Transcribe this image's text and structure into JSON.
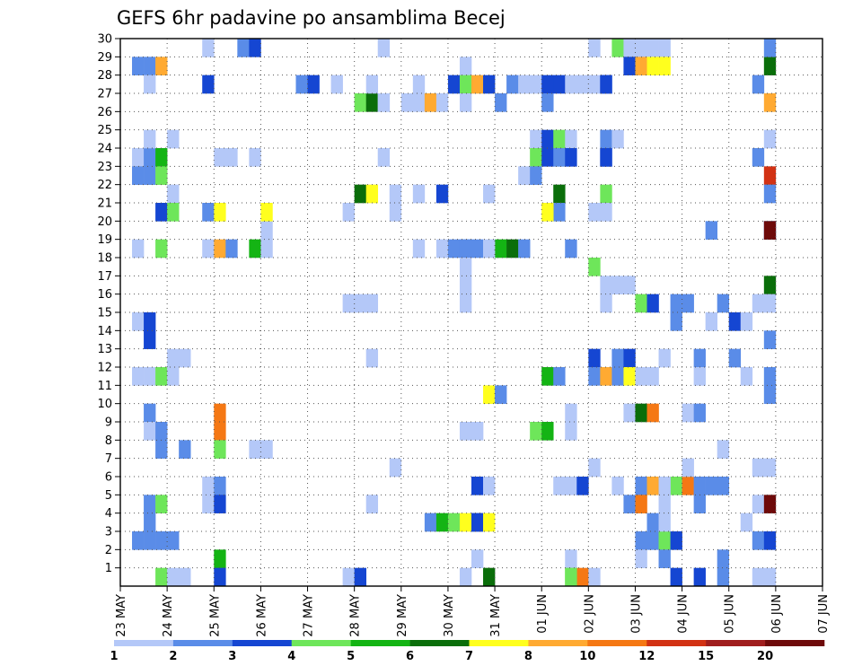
{
  "chart_data": {
    "type": "heatmap",
    "title": "GEFS 6hr padavine po ansamblima Becej",
    "x_ticks": [
      "23 MAY",
      "24 MAY",
      "25 MAY",
      "26 MAY",
      "27 MAY",
      "28 MAY",
      "29 MAY",
      "30 MAY",
      "31 MAY",
      "01 JUN",
      "02 JUN",
      "03 JUN",
      "04 JUN",
      "05 JUN",
      "06 JUN",
      "07 JUN"
    ],
    "y_ticks": [
      1,
      2,
      3,
      4,
      5,
      6,
      7,
      8,
      9,
      10,
      11,
      12,
      13,
      14,
      15,
      16,
      17,
      18,
      19,
      20,
      21,
      22,
      23,
      24,
      25,
      26,
      27,
      28,
      29,
      30
    ],
    "ylim": [
      0,
      30
    ],
    "steps_per_day": 4,
    "grid": true,
    "colorbar": {
      "labels": [
        "1",
        "2",
        "3",
        "4",
        "5",
        "6",
        "7",
        "8",
        "10",
        "12",
        "15",
        "20"
      ],
      "colors": [
        "#b4c8f8",
        "#5a8ce8",
        "#1546d2",
        "#6ee65a",
        "#14b414",
        "#0a6e0a",
        "#ffff1e",
        "#ffaa32",
        "#f57814",
        "#d23214",
        "#a01e1e",
        "#6e0a0a"
      ]
    },
    "cells": [
      [
        1,
        28,
        2
      ],
      [
        2,
        28,
        2
      ],
      [
        3,
        28,
        8
      ],
      [
        2,
        27,
        1
      ],
      [
        1,
        23,
        1
      ],
      [
        2,
        23,
        2
      ],
      [
        3,
        23,
        5
      ],
      [
        1,
        22,
        2
      ],
      [
        2,
        22,
        2
      ],
      [
        3,
        22,
        4
      ],
      [
        2,
        24,
        1
      ],
      [
        4,
        24,
        1
      ],
      [
        4,
        21,
        1
      ],
      [
        3,
        20,
        3
      ],
      [
        4,
        20,
        4
      ],
      [
        1,
        18,
        1
      ],
      [
        3,
        18,
        4
      ],
      [
        1,
        14,
        1
      ],
      [
        2,
        14,
        3
      ],
      [
        2,
        13,
        3
      ],
      [
        4,
        12,
        1
      ],
      [
        5,
        12,
        1
      ],
      [
        1,
        11,
        1
      ],
      [
        2,
        11,
        1
      ],
      [
        3,
        11,
        4
      ],
      [
        4,
        11,
        1
      ],
      [
        2,
        9,
        2
      ],
      [
        2,
        8,
        1
      ],
      [
        3,
        8,
        2
      ],
      [
        3,
        7,
        2
      ],
      [
        5,
        7,
        2
      ],
      [
        2,
        4,
        2
      ],
      [
        3,
        4,
        4
      ],
      [
        2,
        3,
        2
      ],
      [
        1,
        2,
        2
      ],
      [
        2,
        2,
        2
      ],
      [
        3,
        2,
        2
      ],
      [
        4,
        2,
        2
      ],
      [
        3,
        0,
        4
      ],
      [
        4,
        0,
        1
      ],
      [
        5,
        0,
        1
      ],
      [
        7,
        29,
        1
      ],
      [
        7,
        27,
        3
      ],
      [
        8,
        23,
        1
      ],
      [
        9,
        23,
        1
      ],
      [
        7,
        20,
        2
      ],
      [
        8,
        20,
        7
      ],
      [
        7,
        18,
        1
      ],
      [
        8,
        18,
        8
      ],
      [
        9,
        18,
        2
      ],
      [
        8,
        9,
        9
      ],
      [
        8,
        8,
        9
      ],
      [
        8,
        7,
        4
      ],
      [
        7,
        5,
        1
      ],
      [
        8,
        5,
        2
      ],
      [
        7,
        4,
        1
      ],
      [
        8,
        4,
        3
      ],
      [
        8,
        1,
        5
      ],
      [
        8,
        0,
        3
      ],
      [
        10,
        29,
        2
      ],
      [
        11,
        29,
        3
      ],
      [
        11,
        23,
        1
      ],
      [
        11,
        18,
        5
      ],
      [
        12,
        18,
        1
      ],
      [
        12,
        19,
        1
      ],
      [
        12,
        20,
        7
      ],
      [
        11,
        7,
        1
      ],
      [
        12,
        7,
        1
      ],
      [
        15,
        27,
        2
      ],
      [
        16,
        27,
        3
      ],
      [
        20,
        26,
        4
      ],
      [
        21,
        26,
        6
      ],
      [
        20,
        21,
        6
      ],
      [
        21,
        21,
        7
      ],
      [
        19,
        20,
        1
      ],
      [
        19,
        15,
        1
      ],
      [
        20,
        15,
        1
      ],
      [
        21,
        15,
        1
      ],
      [
        21,
        12,
        1
      ],
      [
        21,
        4,
        1
      ],
      [
        19,
        0,
        1
      ],
      [
        20,
        0,
        3
      ],
      [
        18,
        27,
        1
      ],
      [
        21,
        27,
        1
      ],
      [
        22,
        26,
        1
      ],
      [
        22,
        26,
        1
      ],
      [
        22,
        29,
        1
      ],
      [
        22,
        23,
        1
      ],
      [
        23,
        21,
        1
      ],
      [
        23,
        20,
        1
      ],
      [
        23,
        6,
        1
      ],
      [
        25,
        27,
        1
      ],
      [
        24,
        26,
        1
      ],
      [
        25,
        26,
        1
      ],
      [
        26,
        26,
        8
      ],
      [
        27,
        26,
        1
      ],
      [
        25,
        21,
        1
      ],
      [
        27,
        21,
        3
      ],
      [
        25,
        18,
        1
      ],
      [
        27,
        18,
        1
      ],
      [
        28,
        18,
        2
      ],
      [
        29,
        18,
        2
      ],
      [
        26,
        3,
        2
      ],
      [
        27,
        3,
        5
      ],
      [
        28,
        3,
        4
      ],
      [
        29,
        3,
        7
      ],
      [
        30,
        3,
        3
      ],
      [
        29,
        28,
        1
      ],
      [
        28,
        27,
        3
      ],
      [
        29,
        27,
        4
      ],
      [
        30,
        27,
        8
      ],
      [
        31,
        27,
        3
      ],
      [
        29,
        26,
        1
      ],
      [
        29,
        18,
        2
      ],
      [
        30,
        18,
        2
      ],
      [
        29,
        17,
        1
      ],
      [
        29,
        16,
        1
      ],
      [
        29,
        15,
        1
      ],
      [
        32,
        18,
        5
      ],
      [
        33,
        18,
        6
      ],
      [
        31,
        18,
        1
      ],
      [
        34,
        18,
        2
      ],
      [
        31,
        21,
        1
      ],
      [
        31,
        10,
        7
      ],
      [
        32,
        10,
        2
      ],
      [
        29,
        8,
        1
      ],
      [
        30,
        8,
        1
      ],
      [
        30,
        5,
        3
      ],
      [
        31,
        5,
        1
      ],
      [
        30,
        3,
        3
      ],
      [
        31,
        3,
        7
      ],
      [
        29,
        0,
        1
      ],
      [
        30,
        1,
        1
      ],
      [
        31,
        0,
        6
      ],
      [
        32,
        26,
        2
      ],
      [
        33,
        27,
        2
      ],
      [
        34,
        27,
        1
      ],
      [
        35,
        27,
        1
      ],
      [
        36,
        27,
        3
      ],
      [
        37,
        27,
        3
      ],
      [
        38,
        27,
        1
      ],
      [
        39,
        27,
        1
      ],
      [
        40,
        27,
        1
      ],
      [
        41,
        27,
        3
      ],
      [
        36,
        26,
        2
      ],
      [
        35,
        24,
        1
      ],
      [
        36,
        24,
        3
      ],
      [
        37,
        24,
        4
      ],
      [
        38,
        24,
        1
      ],
      [
        35,
        23,
        4
      ],
      [
        36,
        23,
        3
      ],
      [
        37,
        23,
        2
      ],
      [
        38,
        23,
        3
      ],
      [
        34,
        22,
        1
      ],
      [
        35,
        22,
        2
      ],
      [
        37,
        21,
        6
      ],
      [
        37,
        20,
        2
      ],
      [
        36,
        20,
        7
      ],
      [
        41,
        24,
        2
      ],
      [
        41,
        23,
        3
      ],
      [
        38,
        18,
        2
      ],
      [
        36,
        11,
        5
      ],
      [
        37,
        11,
        2
      ],
      [
        35,
        8,
        4
      ],
      [
        36,
        8,
        5
      ],
      [
        38,
        9,
        1
      ],
      [
        38,
        8,
        1
      ],
      [
        38,
        5,
        1
      ],
      [
        39,
        5,
        3
      ],
      [
        37,
        5,
        1
      ],
      [
        38,
        1,
        1
      ],
      [
        38,
        0,
        4
      ],
      [
        39,
        0,
        9
      ],
      [
        40,
        0,
        1
      ],
      [
        38,
        0,
        4
      ],
      [
        40,
        29,
        1
      ],
      [
        42,
        29,
        4
      ],
      [
        43,
        29,
        1
      ],
      [
        44,
        29,
        1
      ],
      [
        45,
        29,
        1
      ],
      [
        46,
        29,
        1
      ],
      [
        43,
        28,
        3
      ],
      [
        44,
        28,
        8
      ],
      [
        45,
        28,
        7
      ],
      [
        46,
        28,
        7
      ],
      [
        41,
        27,
        3
      ],
      [
        42,
        24,
        1
      ],
      [
        41,
        23,
        3
      ],
      [
        41,
        21,
        4
      ],
      [
        40,
        20,
        1
      ],
      [
        41,
        20,
        1
      ],
      [
        40,
        17,
        4
      ],
      [
        41,
        16,
        1
      ],
      [
        42,
        16,
        1
      ],
      [
        43,
        16,
        1
      ],
      [
        41,
        15,
        1
      ],
      [
        44,
        15,
        4
      ],
      [
        45,
        15,
        3
      ],
      [
        40,
        12,
        3
      ],
      [
        42,
        12,
        2
      ],
      [
        43,
        12,
        3
      ],
      [
        40,
        11,
        2
      ],
      [
        41,
        11,
        8
      ],
      [
        42,
        11,
        2
      ],
      [
        43,
        11,
        7
      ],
      [
        44,
        11,
        1
      ],
      [
        45,
        11,
        1
      ],
      [
        43,
        9,
        1
      ],
      [
        44,
        9,
        6
      ],
      [
        45,
        9,
        9
      ],
      [
        40,
        6,
        1
      ],
      [
        42,
        5,
        1
      ],
      [
        44,
        5,
        2
      ],
      [
        45,
        5,
        8
      ],
      [
        46,
        5,
        3
      ],
      [
        47,
        5,
        4
      ],
      [
        48,
        5,
        9
      ],
      [
        49,
        5,
        2
      ],
      [
        50,
        5,
        2
      ],
      [
        51,
        5,
        2
      ],
      [
        43,
        4,
        2
      ],
      [
        44,
        4,
        9
      ],
      [
        45,
        3,
        2
      ],
      [
        44,
        2,
        2
      ],
      [
        45,
        2,
        2
      ],
      [
        46,
        2,
        4
      ],
      [
        47,
        2,
        3
      ],
      [
        44,
        1,
        1
      ],
      [
        46,
        3,
        1
      ],
      [
        46,
        4,
        1
      ],
      [
        46,
        5,
        1
      ],
      [
        46,
        1,
        2
      ],
      [
        47,
        0,
        3
      ],
      [
        46,
        12,
        1
      ],
      [
        47,
        15,
        2
      ],
      [
        48,
        15,
        2
      ],
      [
        47,
        14,
        2
      ],
      [
        49,
        12,
        2
      ],
      [
        49,
        11,
        1
      ],
      [
        48,
        9,
        1
      ],
      [
        49,
        9,
        2
      ],
      [
        48,
        6,
        1
      ],
      [
        49,
        4,
        2
      ],
      [
        51,
        7,
        1
      ],
      [
        51,
        1,
        2
      ],
      [
        51,
        0,
        2
      ],
      [
        49,
        0,
        3
      ],
      [
        50,
        19,
        2
      ],
      [
        50,
        14,
        1
      ],
      [
        51,
        15,
        2
      ],
      [
        52,
        14,
        3
      ],
      [
        53,
        14,
        1
      ],
      [
        52,
        12,
        2
      ],
      [
        53,
        11,
        1
      ],
      [
        54,
        23,
        2
      ],
      [
        55,
        24,
        1
      ],
      [
        55,
        28,
        6
      ],
      [
        54,
        27,
        2
      ],
      [
        55,
        26,
        8
      ],
      [
        55,
        22,
        10
      ],
      [
        55,
        21,
        2
      ],
      [
        55,
        19,
        3
      ],
      [
        55,
        19,
        12
      ],
      [
        55,
        16,
        6
      ],
      [
        55,
        15,
        1
      ],
      [
        55,
        13,
        2
      ],
      [
        55,
        10,
        2
      ],
      [
        55,
        11,
        2
      ],
      [
        54,
        6,
        1
      ],
      [
        55,
        6,
        1
      ],
      [
        54,
        4,
        1
      ],
      [
        55,
        4,
        12
      ],
      [
        53,
        3,
        1
      ],
      [
        54,
        2,
        2
      ],
      [
        55,
        2,
        3
      ],
      [
        55,
        0,
        1
      ],
      [
        54,
        0,
        1
      ],
      [
        54,
        15,
        1
      ],
      [
        55,
        29,
        2
      ]
    ]
  }
}
